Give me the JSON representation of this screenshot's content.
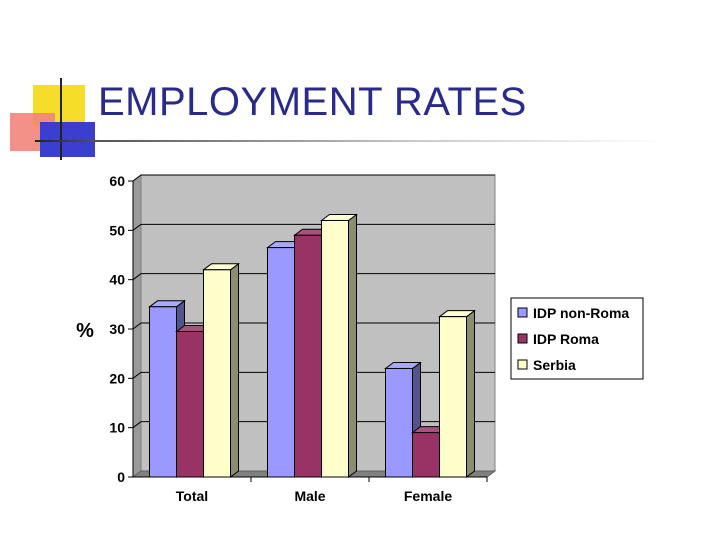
{
  "slide": {
    "title": "EMPLOYMENT RATES"
  },
  "chart_data": {
    "type": "bar",
    "title": "",
    "xlabel": "",
    "ylabel": "%",
    "ylim": [
      0,
      60
    ],
    "yticks": [
      0,
      10,
      20,
      30,
      40,
      50,
      60
    ],
    "grid": true,
    "legend_position": "right",
    "categories": [
      "Total",
      "Male",
      "Female"
    ],
    "series": [
      {
        "name": "IDP non-Roma",
        "color": "#9999ff",
        "values": [
          34.5,
          46.5,
          22
        ]
      },
      {
        "name": "IDP Roma",
        "color": "#993366",
        "values": [
          29.5,
          49,
          9
        ]
      },
      {
        "name": "Serbia",
        "color": "#ffffcc",
        "values": [
          42,
          52,
          32.5
        ]
      }
    ]
  }
}
